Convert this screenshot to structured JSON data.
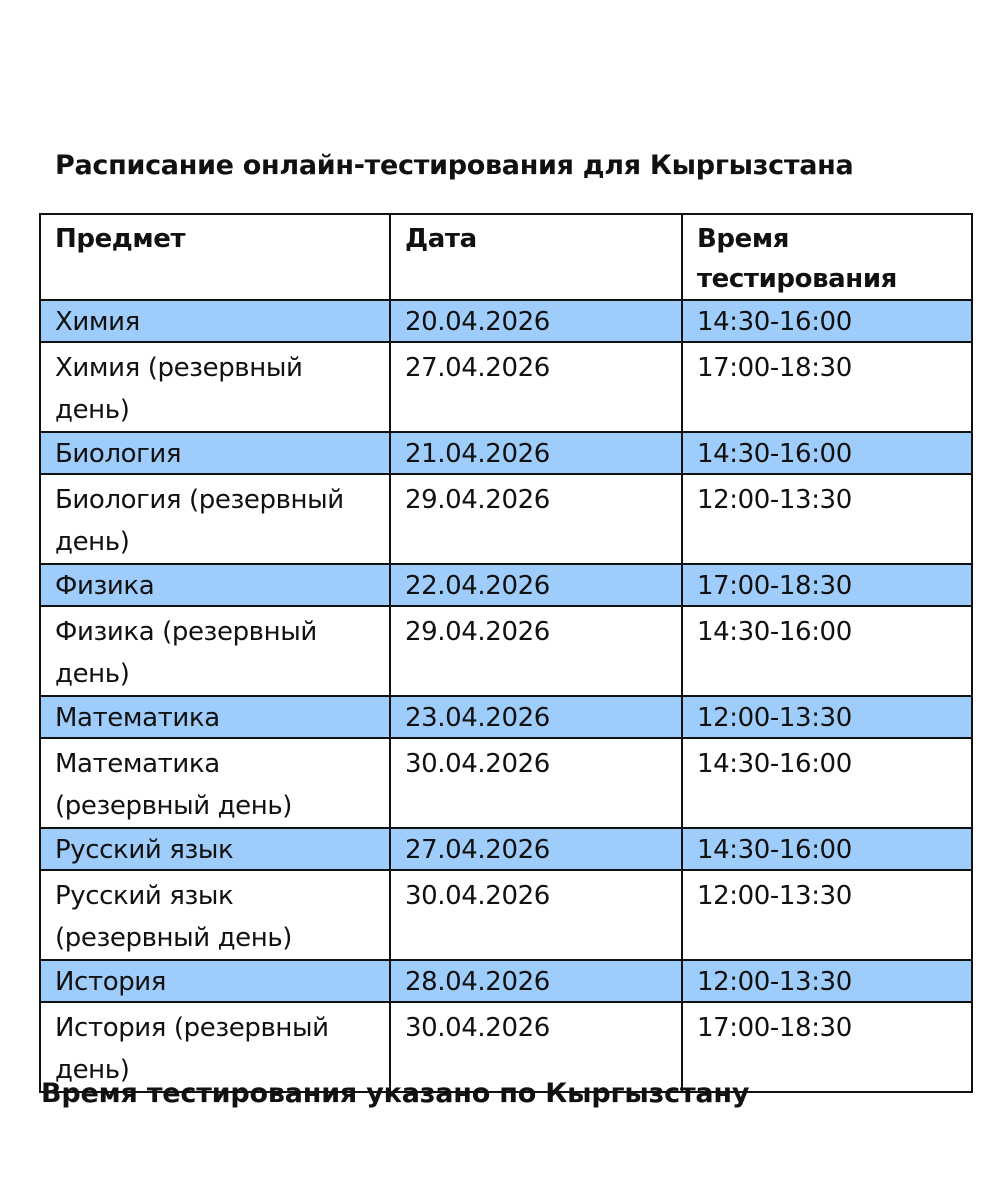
{
  "title": "Расписание онлайн-тестирования для Кыргызстана",
  "table": {
    "headers": [
      "Предмет",
      "Дата",
      "Время тестирования"
    ],
    "highlight_color": "#9fcdfb",
    "rows": [
      {
        "subject": "Химия",
        "date": "20.04.2026",
        "time": "14:30-16:00",
        "highlight": true
      },
      {
        "subject": "Химия (резервный день)",
        "date": "27.04.2026",
        "time": "17:00-18:30",
        "highlight": false
      },
      {
        "subject": "Биология",
        "date": "21.04.2026",
        "time": "14:30-16:00",
        "highlight": true
      },
      {
        "subject": "Биология (резервный день)",
        "date": "29.04.2026",
        "time": "12:00-13:30",
        "highlight": false
      },
      {
        "subject": "Физика",
        "date": "22.04.2026",
        "time": "17:00-18:30",
        "highlight": true
      },
      {
        "subject": "Физика (резервный день)",
        "date": "29.04.2026",
        "time": "14:30-16:00",
        "highlight": false
      },
      {
        "subject": "Математика",
        "date": "23.04.2026",
        "time": "12:00-13:30",
        "highlight": true
      },
      {
        "subject": "Математика (резервный день)",
        "date": "30.04.2026",
        "time": "14:30-16:00",
        "highlight": false
      },
      {
        "subject": "Русский язык",
        "date": "27.04.2026",
        "time": "14:30-16:00",
        "highlight": true
      },
      {
        "subject": "Русский язык (резервный день)",
        "date": "30.04.2026",
        "time": "12:00-13:30",
        "highlight": false
      },
      {
        "subject": "История",
        "date": "28.04.2026",
        "time": "12:00-13:30",
        "highlight": true
      },
      {
        "subject": "История (резервный день)",
        "date": "30.04.2026",
        "time": "17:00-18:30",
        "highlight": false
      }
    ]
  },
  "note": "Время тестирования указано по Кыргызстану"
}
